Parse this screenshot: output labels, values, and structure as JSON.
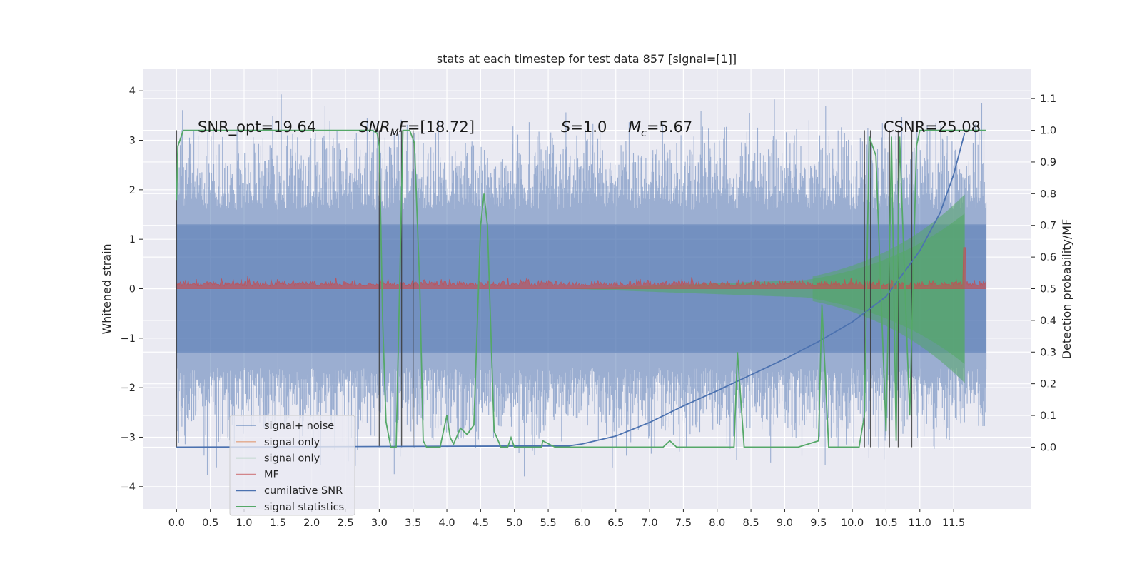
{
  "chart_data": {
    "type": "line",
    "title": "stats at each timestep for test data 857 [signal=[1]]",
    "ylabel": "Whitened strain",
    "y2label": "Detection probability/MF",
    "xlim": [
      -0.5,
      12.65
    ],
    "ylim": [
      -4.45,
      4.45
    ],
    "y2lim": [
      -0.195,
      1.195
    ],
    "x_ticks": [
      0.0,
      0.5,
      1.0,
      1.5,
      2.0,
      2.5,
      3.0,
      3.5,
      4.0,
      4.5,
      5.0,
      5.5,
      6.0,
      6.5,
      7.0,
      7.5,
      8.0,
      8.5,
      9.0,
      9.5,
      10.0,
      10.5,
      11.0,
      11.5
    ],
    "x_tick_labels": [
      "0.0",
      "0.5",
      "1.0",
      "1.5",
      "2.0",
      "2.5",
      "3.0",
      "3.5",
      "4.0",
      "4.5",
      "5.0",
      "5.5",
      "6.0",
      "6.5",
      "7.0",
      "7.5",
      "8.0",
      "8.5",
      "9.0",
      "9.5",
      "10.0",
      "10.5",
      "11.0",
      "11.5"
    ],
    "y_ticks": [
      -4,
      -3,
      -2,
      -1,
      0,
      1,
      2,
      3,
      4
    ],
    "y_tick_labels": [
      "−4",
      "−3",
      "−2",
      "−1",
      "0",
      "1",
      "2",
      "3",
      "4"
    ],
    "y2_ticks": [
      0.0,
      0.1,
      0.2,
      0.3,
      0.4,
      0.5,
      0.6,
      0.7,
      0.8,
      0.9,
      1.0,
      1.1
    ],
    "y2_tick_labels": [
      "0.0",
      "0.1",
      "0.2",
      "0.3",
      "0.4",
      "0.5",
      "0.6",
      "0.7",
      "0.8",
      "0.9",
      "1.0",
      "1.1"
    ],
    "grid": true,
    "legend_position": "lower-left",
    "legend": [
      {
        "label": "signal+ noise",
        "color": "#4c72b0"
      },
      {
        "label": "signal only",
        "color": "#dd8452"
      },
      {
        "label": "signal only",
        "color": "#55a868"
      },
      {
        "label": "MF",
        "color": "#c44e52"
      },
      {
        "label": "cumilative SNR",
        "color": "#4c72b0"
      },
      {
        "label": "signal statistics",
        "color": "#55a868"
      }
    ],
    "annotations": [
      {
        "text": "SNR_opt=19.64"
      },
      {
        "text": "SNR_MF=[18.72]"
      },
      {
        "text": "S=1.0"
      },
      {
        "text": "M_c=5.67"
      },
      {
        "text": "CSNR=25.08"
      }
    ],
    "noise": {
      "x_range": [
        0.0,
        11.98
      ],
      "band": [
        -1.3,
        1.3
      ],
      "max_spike": 4.1,
      "min_spike": -4.05,
      "color": "#4c72b0"
    },
    "signal_envelope": {
      "x_range": [
        5.8,
        11.66
      ],
      "amplitude_start": 0.0,
      "amplitude_end": 1.9,
      "color": "#55a868"
    },
    "mf_series": {
      "name": "MF",
      "baseline": 0.5,
      "typical": 0.52,
      "peak_x": 11.66,
      "peak_y": 0.63,
      "color": "#c44e52"
    },
    "cumulative_snr": {
      "name": "cumilative SNR",
      "color": "#4c72b0",
      "x": [
        0.0,
        5.8,
        6.0,
        6.5,
        7.0,
        7.5,
        8.0,
        8.5,
        9.0,
        9.5,
        10.0,
        10.5,
        11.0,
        11.3,
        11.5,
        11.66
      ],
      "y": [
        0.0,
        0.004,
        0.01,
        0.035,
        0.078,
        0.13,
        0.178,
        0.228,
        0.278,
        0.333,
        0.395,
        0.475,
        0.62,
        0.74,
        0.86,
        0.99
      ]
    },
    "signal_statistics": {
      "name": "signal statistics",
      "color": "#55a868",
      "x": [
        0.0,
        0.02,
        0.1,
        0.2,
        2.9,
        2.97,
        3.0,
        3.05,
        3.1,
        3.17,
        3.25,
        3.3,
        3.35,
        3.45,
        3.52,
        3.6,
        3.65,
        3.7,
        3.8,
        3.9,
        4.0,
        4.05,
        4.1,
        4.2,
        4.3,
        4.4,
        4.5,
        4.55,
        4.6,
        4.7,
        4.8,
        4.9,
        4.95,
        5.0,
        5.1,
        5.4,
        5.42,
        5.6,
        7.2,
        7.3,
        7.4,
        8.25,
        8.3,
        8.4,
        9.2,
        9.5,
        9.55,
        9.65,
        9.8,
        10.1,
        10.18,
        10.25,
        10.35,
        10.5,
        10.55,
        10.58,
        10.65,
        10.68,
        10.7,
        10.78,
        10.85,
        10.95,
        11.0,
        11.1,
        11.98
      ],
      "y": [
        0.78,
        0.95,
        1.0,
        1.0,
        1.0,
        0.99,
        0.95,
        0.4,
        0.08,
        0.0,
        0.0,
        0.5,
        1.0,
        1.0,
        0.96,
        0.5,
        0.02,
        0.0,
        0.0,
        0.0,
        0.1,
        0.03,
        0.01,
        0.06,
        0.04,
        0.07,
        0.7,
        0.8,
        0.7,
        0.05,
        0.0,
        0.0,
        0.03,
        0.0,
        0.0,
        0.0,
        0.02,
        0.0,
        0.0,
        0.02,
        0.0,
        0.0,
        0.3,
        0.0,
        0.0,
        0.02,
        0.45,
        0.0,
        0.0,
        0.0,
        0.1,
        0.98,
        0.92,
        0.05,
        0.6,
        0.98,
        0.02,
        0.7,
        0.98,
        0.5,
        0.1,
        0.95,
        1.0,
        1.0,
        1.0
      ]
    },
    "vertical_markers": [
      0.0,
      3.0,
      3.33,
      3.5,
      10.18,
      10.27,
      10.55,
      10.68,
      10.88
    ]
  }
}
